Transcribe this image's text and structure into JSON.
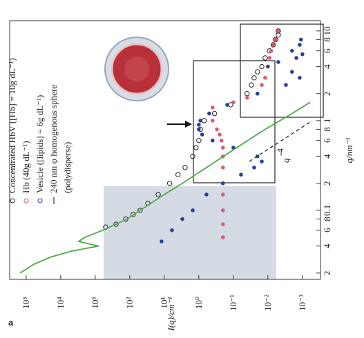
{
  "panel_label": "a",
  "chart_data": {
    "type": "scatter",
    "xlabel": "q/nm⁻¹",
    "ylabel": "I(q)/cm⁻¹",
    "annotation": {
      "text": "q",
      "superscript": "-4"
    },
    "xscale": "log",
    "yscale": "log",
    "xlim": [
      0.017,
      13
    ],
    "ylim": [
      0.0003,
      300000
    ],
    "xticks": [
      {
        "value": 0.02,
        "label": "2"
      },
      {
        "value": 0.04,
        "label": "4"
      },
      {
        "value": 0.06,
        "label": "6"
      },
      {
        "value": 0.08,
        "label": "8"
      },
      0.1,
      {
        "value": 0.2,
        "label": "2"
      },
      {
        "value": 0.4,
        "label": "4"
      },
      {
        "value": 0.6,
        "label": "6"
      },
      {
        "value": 0.8,
        "label": "8"
      },
      1,
      2,
      4,
      6,
      8,
      10
    ],
    "yticks": [
      {
        "value": 0.001,
        "label": "10⁻³"
      },
      {
        "value": 0.01,
        "label": "10⁻²"
      },
      {
        "value": 0.1,
        "label": "10⁻¹"
      },
      {
        "value": 1,
        "label": "10⁰"
      },
      {
        "value": 10,
        "label": "10¹"
      },
      {
        "value": 100,
        "label": "10²"
      },
      {
        "value": 1000,
        "label": "10³"
      },
      {
        "value": 10000,
        "label": "10⁴"
      },
      {
        "value": 100000,
        "label": "10⁵"
      }
    ],
    "legend_note": "(polydisperse)",
    "series": [
      {
        "name": "Concentrated HbV ([Hb] = 10g dL⁻¹)",
        "color": "#222222",
        "marker": "circle-open",
        "x": [
          0.065,
          0.07,
          0.08,
          0.09,
          0.1,
          0.12,
          0.15,
          0.2,
          0.25,
          0.3,
          0.4,
          0.5,
          0.6,
          0.8,
          1.0,
          1.2,
          1.5,
          2,
          2.5,
          3,
          3.5,
          4,
          5,
          6,
          7,
          8,
          9,
          10
        ],
        "values": [
          500,
          250,
          130,
          80,
          50,
          30,
          15,
          7,
          4,
          2.5,
          1.5,
          1.2,
          1.0,
          0.9,
          0.7,
          0.35,
          0.12,
          0.04,
          0.03,
          0.025,
          0.02,
          0.015,
          0.012,
          0.009,
          0.007,
          0.006,
          0.005,
          0.005
        ]
      },
      {
        "name": "Hb (40g dL⁻¹)",
        "color": "#e05a6a",
        "marker": "circle",
        "x": [
          0.05,
          0.07,
          0.1,
          0.15,
          0.2,
          0.3,
          0.4,
          0.5,
          0.6,
          0.7,
          0.8,
          1.0,
          1.2,
          1.4,
          1.6,
          1.8,
          2,
          2.5,
          3,
          4,
          5,
          6,
          7,
          8,
          10
        ],
        "values": [
          0.2,
          0.2,
          0.2,
          0.2,
          0.2,
          0.2,
          0.2,
          0.2,
          0.22,
          0.25,
          0.3,
          0.4,
          0.5,
          0.4,
          0.1,
          0.04,
          0.02,
          0.015,
          0.012,
          0.01,
          0.009,
          0.008,
          0.007,
          0.006,
          0.005
        ]
      },
      {
        "name": "Vesicle ([lipids] = 6g dL⁻¹)",
        "color": "#2a3f9a",
        "marker": "circle",
        "x": [
          0.045,
          0.06,
          0.08,
          0.1,
          0.15,
          0.2,
          0.25,
          0.3,
          0.35,
          0.4,
          0.5,
          0.6,
          0.7,
          0.8,
          0.9,
          1.0,
          1.2,
          1.5,
          2,
          2.5,
          3,
          3.5,
          4,
          4.5,
          5,
          5.5,
          6,
          7,
          8
        ],
        "values": [
          12,
          6,
          3,
          1.5,
          0.6,
          0.2,
          0.06,
          0.025,
          0.015,
          0.02,
          0.1,
          0.4,
          0.8,
          1.0,
          1.0,
          0.9,
          0.5,
          0.15,
          0.02,
          0.003,
          0.0012,
          0.002,
          0.01,
          0.005,
          0.0015,
          0.001,
          0.002,
          0.0012,
          0.0011
        ]
      },
      {
        "name": "240 nm φ homogenous sphere",
        "color": "#4caa44",
        "marker": "line",
        "x": [
          0.02,
          0.025,
          0.03,
          0.035,
          0.04,
          0.045,
          0.05,
          0.06,
          0.07,
          0.08,
          0.1,
          0.15,
          0.2,
          0.3,
          0.5,
          0.8,
          1.2,
          1.6
        ],
        "values": [
          150000,
          60000,
          20000,
          5000,
          800,
          3000,
          2000,
          600,
          250,
          120,
          50,
          10,
          3,
          0.6,
          0.08,
          0.012,
          0.002,
          0.0006
        ]
      }
    ]
  }
}
